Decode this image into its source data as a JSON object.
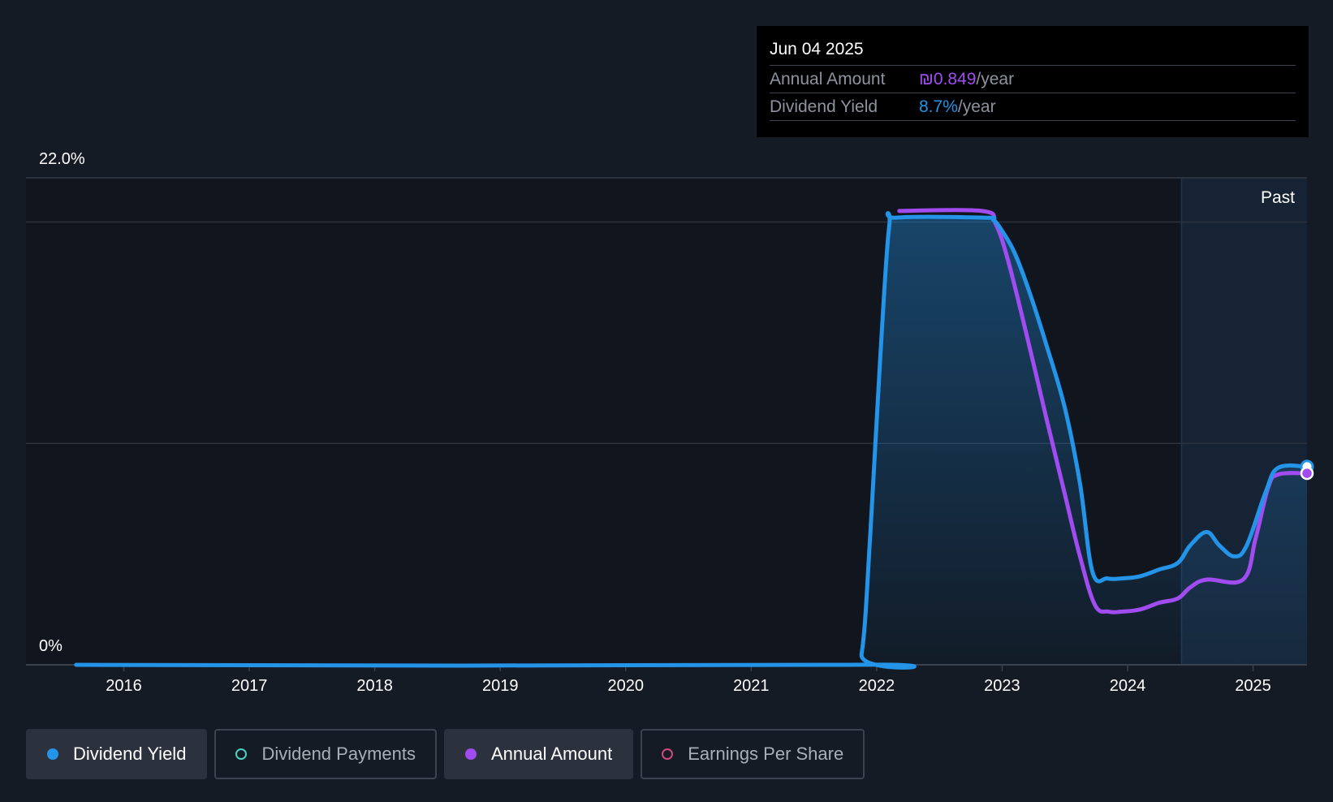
{
  "tooltip": {
    "date": "Jun 04 2025",
    "annual_label": "Annual Amount",
    "annual_value": "₪0.849",
    "annual_unit": "/year",
    "yield_label": "Dividend Yield",
    "yield_value": "8.7%",
    "yield_unit": "/year"
  },
  "past_label": "Past",
  "legend": [
    {
      "label": "Dividend Yield",
      "color": "#2394e8",
      "active": true,
      "filled": true
    },
    {
      "label": "Dividend Payments",
      "color": "#4dd0c3",
      "active": false,
      "filled": false
    },
    {
      "label": "Annual Amount",
      "color": "#a04cf0",
      "active": true,
      "filled": true
    },
    {
      "label": "Earnings Per Share",
      "color": "#d0487e",
      "active": false,
      "filled": false
    }
  ],
  "colors": {
    "yield": "#2394e8",
    "annual": "#a04cf0",
    "background": "#151b25",
    "plot": "#11151d",
    "past_region": "#162334",
    "grid": "#2b313d"
  },
  "chart_data": {
    "type": "line",
    "y_tick_labels": [
      "22.0%",
      "0%"
    ],
    "ylim": [
      0,
      22
    ],
    "x_ticks": [
      {
        "label": "2016",
        "value": 2016
      },
      {
        "label": "2017",
        "value": 2017
      },
      {
        "label": "2018",
        "value": 2018
      },
      {
        "label": "2019",
        "value": 2019
      },
      {
        "label": "2020",
        "value": 2020
      },
      {
        "label": "2021",
        "value": 2021
      },
      {
        "label": "2022",
        "value": 2022
      },
      {
        "label": "2023",
        "value": 2023
      },
      {
        "label": "2024",
        "value": 2024
      },
      {
        "label": "2025",
        "value": 2025
      }
    ],
    "xlim": [
      2015.22,
      2025.43
    ],
    "past_start": 2024.43,
    "gridlines": [
      0,
      10,
      20,
      22
    ],
    "series": [
      {
        "name": "Dividend Yield",
        "points": [
          [
            2015.62,
            0
          ],
          [
            2021.78,
            0
          ],
          [
            2021.88,
            0.5
          ],
          [
            2021.95,
            6
          ],
          [
            2022.03,
            14
          ],
          [
            2022.1,
            19.8
          ],
          [
            2022.16,
            20.2
          ],
          [
            2022.86,
            20.2
          ],
          [
            2022.93,
            20.1
          ],
          [
            2023.0,
            19.6
          ],
          [
            2023.1,
            18.6
          ],
          [
            2023.22,
            16.8
          ],
          [
            2023.35,
            14.5
          ],
          [
            2023.5,
            11.6
          ],
          [
            2023.62,
            8.2
          ],
          [
            2023.72,
            4.2
          ],
          [
            2023.84,
            3.9
          ],
          [
            2023.95,
            3.9
          ],
          [
            2024.1,
            4.0
          ],
          [
            2024.25,
            4.3
          ],
          [
            2024.4,
            4.6
          ],
          [
            2024.5,
            5.4
          ],
          [
            2024.63,
            6.0
          ],
          [
            2024.73,
            5.4
          ],
          [
            2024.85,
            4.9
          ],
          [
            2024.95,
            5.4
          ],
          [
            2025.1,
            7.8
          ],
          [
            2025.2,
            8.9
          ],
          [
            2025.43,
            8.95
          ]
        ]
      },
      {
        "name": "Annual Amount",
        "points": [
          [
            2022.18,
            20.5
          ],
          [
            2022.84,
            20.5
          ],
          [
            2022.95,
            19.9
          ],
          [
            2023.05,
            18.2
          ],
          [
            2023.2,
            14.8
          ],
          [
            2023.35,
            11.2
          ],
          [
            2023.5,
            7.7
          ],
          [
            2023.62,
            4.9
          ],
          [
            2023.74,
            2.7
          ],
          [
            2023.85,
            2.4
          ],
          [
            2023.95,
            2.4
          ],
          [
            2024.1,
            2.5
          ],
          [
            2024.25,
            2.8
          ],
          [
            2024.4,
            3.0
          ],
          [
            2024.5,
            3.5
          ],
          [
            2024.63,
            3.85
          ],
          [
            2024.92,
            3.85
          ],
          [
            2025.02,
            5.7
          ],
          [
            2025.12,
            8.0
          ],
          [
            2025.2,
            8.6
          ],
          [
            2025.43,
            8.65
          ]
        ]
      }
    ]
  }
}
